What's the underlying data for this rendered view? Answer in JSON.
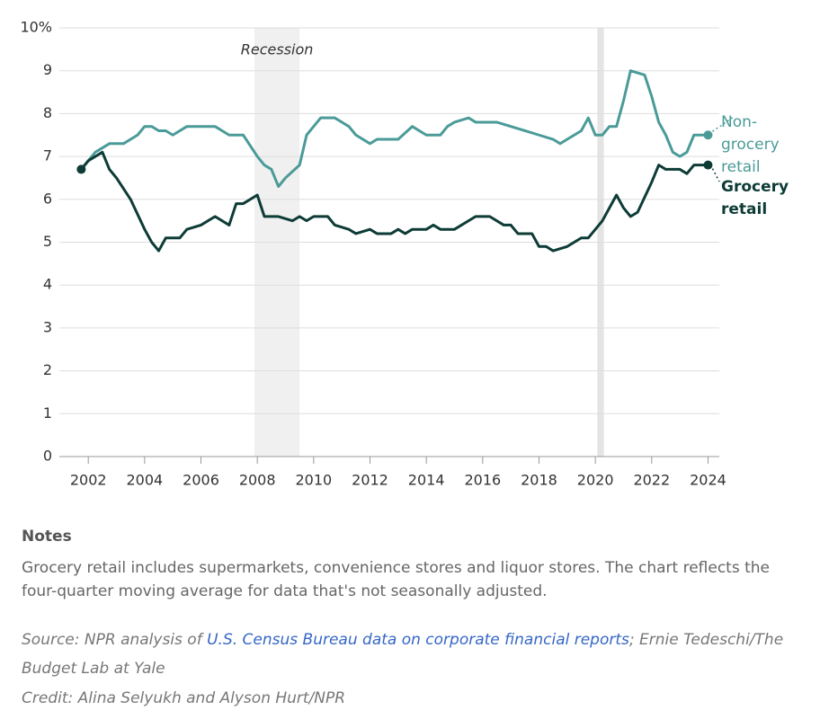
{
  "chart_data": {
    "type": "line",
    "xlim": [
      2001.1,
      2024.4
    ],
    "ylim": [
      0,
      10
    ],
    "xticks": [
      2002,
      2004,
      2006,
      2008,
      2010,
      2012,
      2014,
      2016,
      2018,
      2020,
      2022,
      2024
    ],
    "yticks": [
      0,
      1,
      2,
      3,
      4,
      5,
      6,
      7,
      8,
      9,
      {
        "value": 10,
        "label": "10%"
      }
    ],
    "grid": true,
    "shaded_regions": [
      {
        "start": 2007.9,
        "end": 2009.5,
        "label": "Recession"
      },
      {
        "start": 2020.07,
        "end": 2020.3
      }
    ],
    "series": [
      {
        "name": "Non-grocery retail",
        "color": "#4a9b98",
        "x": [
          2001.75,
          2002.0,
          2002.25,
          2002.75,
          2003.25,
          2003.75,
          2004.0,
          2004.25,
          2004.5,
          2004.75,
          2005.0,
          2005.5,
          2006.0,
          2006.5,
          2007.0,
          2007.5,
          2008.0,
          2008.25,
          2008.5,
          2008.75,
          2009.0,
          2009.5,
          2009.75,
          2010.0,
          2010.25,
          2010.75,
          2011.25,
          2011.5,
          2012.0,
          2012.25,
          2013.0,
          2013.5,
          2014.0,
          2014.5,
          2014.75,
          2015.0,
          2015.5,
          2015.75,
          2016.5,
          2017.0,
          2017.5,
          2018.0,
          2018.5,
          2018.75,
          2019.0,
          2019.5,
          2019.75,
          2020.0,
          2020.25,
          2020.5,
          2020.75,
          2021.0,
          2021.25,
          2021.75,
          2022.0,
          2022.25,
          2022.5,
          2022.75,
          2023.0,
          2023.25,
          2023.5,
          2024.0
        ],
        "values": [
          6.7,
          6.9,
          7.1,
          7.3,
          7.3,
          7.5,
          7.7,
          7.7,
          7.6,
          7.6,
          7.5,
          7.7,
          7.7,
          7.7,
          7.5,
          7.5,
          7.0,
          6.8,
          6.7,
          6.3,
          6.5,
          6.8,
          7.5,
          7.7,
          7.9,
          7.9,
          7.7,
          7.5,
          7.3,
          7.4,
          7.4,
          7.7,
          7.5,
          7.5,
          7.7,
          7.8,
          7.9,
          7.8,
          7.8,
          7.7,
          7.6,
          7.5,
          7.4,
          7.3,
          7.4,
          7.6,
          7.9,
          7.5,
          7.5,
          7.7,
          7.7,
          8.3,
          9.0,
          8.9,
          8.4,
          7.8,
          7.5,
          7.1,
          7.0,
          7.1,
          7.5,
          7.5
        ]
      },
      {
        "name": "Grocery retail",
        "color": "#0d3b36",
        "x": [
          2001.75,
          2002.0,
          2002.5,
          2002.75,
          2003.0,
          2003.5,
          2004.0,
          2004.25,
          2004.5,
          2004.75,
          2005.25,
          2005.5,
          2006.0,
          2006.5,
          2007.0,
          2007.25,
          2007.5,
          2008.0,
          2008.25,
          2008.75,
          2009.25,
          2009.5,
          2009.75,
          2010.0,
          2010.5,
          2010.75,
          2011.25,
          2011.5,
          2012.0,
          2012.25,
          2012.75,
          2013.0,
          2013.25,
          2013.5,
          2014.0,
          2014.25,
          2014.5,
          2015.0,
          2015.75,
          2016.25,
          2016.75,
          2017.0,
          2017.25,
          2017.75,
          2018.0,
          2018.25,
          2018.5,
          2019.0,
          2019.5,
          2019.75,
          2020.0,
          2020.25,
          2020.75,
          2021.0,
          2021.25,
          2021.5,
          2022.0,
          2022.25,
          2022.5,
          2023.0,
          2023.25,
          2023.5,
          2024.0
        ],
        "values": [
          6.7,
          6.9,
          7.1,
          6.7,
          6.5,
          6.0,
          5.3,
          5.0,
          4.8,
          5.1,
          5.1,
          5.3,
          5.4,
          5.6,
          5.4,
          5.9,
          5.9,
          6.1,
          5.6,
          5.6,
          5.5,
          5.6,
          5.5,
          5.6,
          5.6,
          5.4,
          5.3,
          5.2,
          5.3,
          5.2,
          5.2,
          5.3,
          5.2,
          5.3,
          5.3,
          5.4,
          5.3,
          5.3,
          5.6,
          5.6,
          5.4,
          5.4,
          5.2,
          5.2,
          4.9,
          4.9,
          4.8,
          4.9,
          5.1,
          5.1,
          5.3,
          5.5,
          6.1,
          5.8,
          5.6,
          5.7,
          6.4,
          6.8,
          6.7,
          6.7,
          6.6,
          6.8,
          6.8
        ]
      }
    ]
  },
  "notes": {
    "title": "Notes",
    "text": "Grocery retail includes supermarkets, convenience stores and liquor stores. The chart reflects the four-quarter moving average for data that's not seasonally adjusted."
  },
  "source": {
    "prefix": "Source: NPR analysis of ",
    "link": "U.S. Census Bureau data on corporate financial reports",
    "suffix": "; Ernie Tedeschi/The Budget Lab at Yale"
  },
  "credit": "Credit: Alina Selyukh and Alyson Hurt/NPR"
}
